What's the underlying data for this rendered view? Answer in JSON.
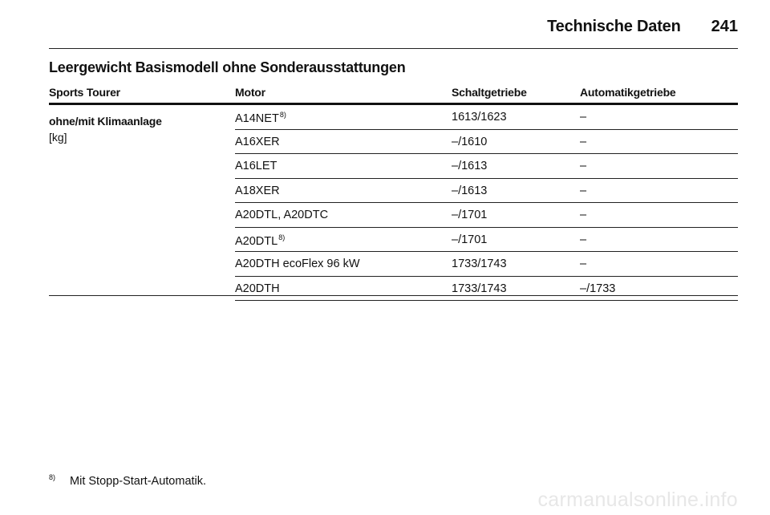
{
  "header": {
    "title": "Technische Daten",
    "page_number": "241"
  },
  "section": {
    "title": "Leergewicht Basismodell ohne Sonderausstattungen"
  },
  "table": {
    "columns": [
      "Sports Tourer",
      "Motor",
      "Schaltgetriebe",
      "Automatikgetriebe"
    ],
    "row_label": "ohne/mit Klimaanlage",
    "row_unit": "[kg]",
    "rows": [
      {
        "motor": "A14NET",
        "note": "8)",
        "manual": "1613/1623",
        "automatic": "–"
      },
      {
        "motor": "A16XER",
        "note": "",
        "manual": "–/1610",
        "automatic": "–"
      },
      {
        "motor": "A16LET",
        "note": "",
        "manual": "–/1613",
        "automatic": "–"
      },
      {
        "motor": "A18XER",
        "note": "",
        "manual": "–/1613",
        "automatic": "–"
      },
      {
        "motor": "A20DTL, A20DTC",
        "note": "",
        "manual": "–/1701",
        "automatic": "–"
      },
      {
        "motor": "A20DTL",
        "note": "8)",
        "manual": "–/1701",
        "automatic": "–"
      },
      {
        "motor": "A20DTH ecoFlex 96 kW",
        "note": "",
        "manual": "1733/1743",
        "automatic": "–"
      },
      {
        "motor": "A20DTH",
        "note": "",
        "manual": "1733/1743",
        "automatic": "–/1733"
      }
    ]
  },
  "footnote": {
    "marker": "8)",
    "text": "Mit Stopp-Start-Automatik."
  },
  "watermark": "carmanualsonline.info"
}
